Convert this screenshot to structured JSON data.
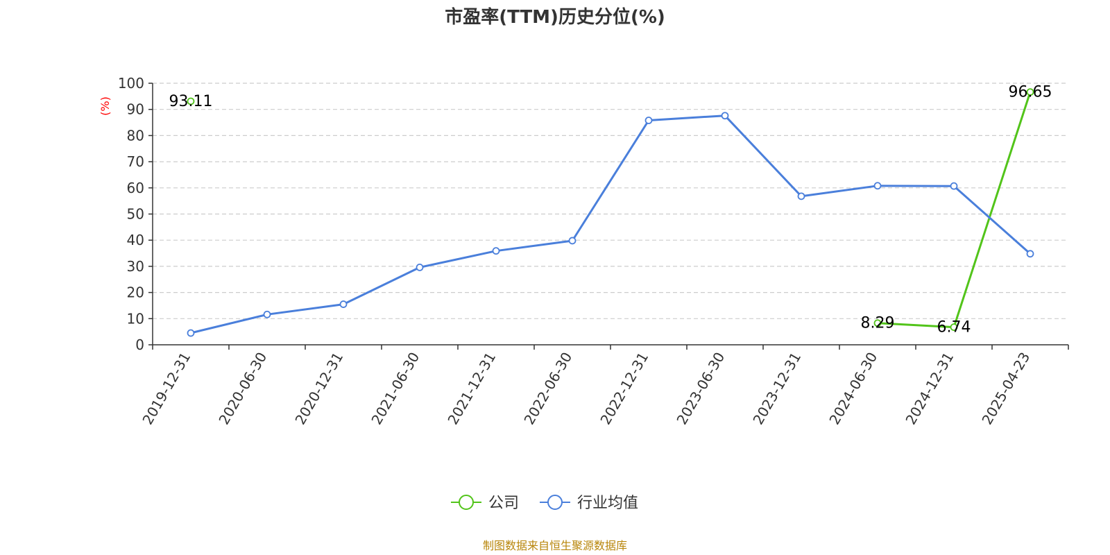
{
  "chart_data": {
    "type": "line",
    "title": "市盈率(TTM)历史分位(%)",
    "ylabel": "(%)",
    "xlabel": "",
    "ylim": [
      0,
      100
    ],
    "yticks": [
      0,
      10,
      20,
      30,
      40,
      50,
      60,
      70,
      80,
      90,
      100
    ],
    "grid": true,
    "legend_position": "bottom",
    "categories": [
      "2019-12-31",
      "2020-06-30",
      "2020-12-31",
      "2021-06-30",
      "2021-12-31",
      "2022-06-30",
      "2022-12-31",
      "2023-06-30",
      "2023-12-31",
      "2024-06-30",
      "2024-12-31",
      "2025-04-23"
    ],
    "series": [
      {
        "name": "公司",
        "color": "#52c41a",
        "values": [
          93.11,
          null,
          null,
          null,
          null,
          null,
          null,
          null,
          null,
          8.29,
          6.74,
          96.65
        ],
        "labels": [
          "93.11",
          "",
          "",
          "",
          "",
          "",
          "",
          "",
          "",
          "8.29",
          "6.74",
          "96.65"
        ]
      },
      {
        "name": "行业均值",
        "color": "#4a7fdb",
        "values": [
          4.5,
          11.6,
          15.5,
          29.6,
          35.9,
          39.8,
          85.8,
          87.6,
          56.8,
          60.8,
          60.7,
          34.8
        ],
        "labels": []
      }
    ],
    "source": "制图数据来自恒生聚源数据库"
  }
}
